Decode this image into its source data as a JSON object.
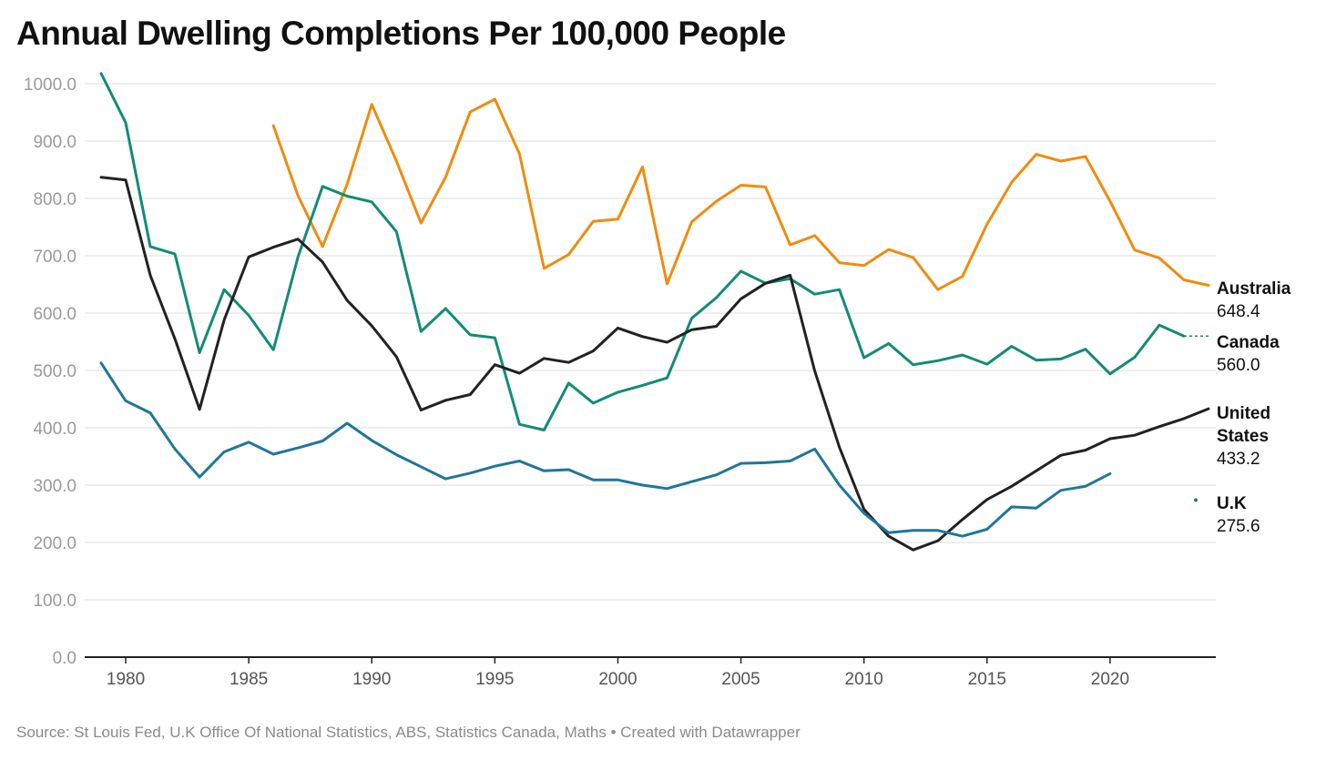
{
  "chart_data": {
    "type": "line",
    "title": "Annual Dwelling Completions Per 100,000 People",
    "source": "Source: St Louis Fed, U.K Office Of National Statistics, ABS, Statistics Canada, Maths • Created with Datawrapper",
    "xlim": [
      1979,
      2024
    ],
    "ylim": [
      0,
      1000
    ],
    "yticks": [
      "0.0",
      "100.0",
      "200.0",
      "300.0",
      "400.0",
      "500.0",
      "600.0",
      "700.0",
      "800.0",
      "900.0",
      "1000.0"
    ],
    "xticks": [
      "1980",
      "1985",
      "1990",
      "1995",
      "2000",
      "2005",
      "2010",
      "2015",
      "2020"
    ],
    "grid": true,
    "legend": "direct labels at right end",
    "series": [
      {
        "name": "Australia",
        "color": "#ef8c0e",
        "end_label": [
          "Australia"
        ],
        "end_value": "648.4",
        "x": [
          1986,
          1987,
          1988,
          1989,
          1990,
          1991,
          1992,
          1993,
          1994,
          1995,
          1996,
          1997,
          1998,
          1999,
          2000,
          2001,
          2002,
          2003,
          2004,
          2005,
          2006,
          2007,
          2008,
          2009,
          2010,
          2011,
          2012,
          2013,
          2014,
          2015,
          2016,
          2017,
          2018,
          2019,
          2020,
          2021,
          2022,
          2023,
          2024
        ],
        "y": [
          927,
          805,
          716,
          825,
          964,
          865,
          757,
          837,
          951,
          973,
          878,
          678,
          702,
          760,
          764,
          855,
          651,
          759,
          795,
          823,
          820,
          719,
          735,
          688,
          683,
          711,
          697,
          641,
          664,
          755,
          828,
          877,
          865,
          873,
          795,
          710,
          696,
          658,
          648.4
        ]
      },
      {
        "name": "Canada",
        "color": "#138c74",
        "end_label": [
          "Canada"
        ],
        "end_value": "560.0",
        "x": [
          1979,
          1980,
          1981,
          1982,
          1983,
          1984,
          1985,
          1986,
          1987,
          1988,
          1989,
          1990,
          1991,
          1992,
          1993,
          1994,
          1995,
          1996,
          1997,
          1998,
          1999,
          2000,
          2001,
          2002,
          2003,
          2004,
          2005,
          2006,
          2007,
          2008,
          2009,
          2010,
          2011,
          2012,
          2013,
          2014,
          2015,
          2016,
          2017,
          2018,
          2019,
          2020,
          2021,
          2022,
          2023
        ],
        "y": [
          1018,
          932,
          716,
          703,
          531,
          641,
          596,
          536,
          698,
          821,
          804,
          794,
          742,
          568,
          608,
          562,
          557,
          406,
          396,
          478,
          443,
          462,
          474,
          487,
          591,
          627,
          673,
          652,
          660,
          633,
          641,
          522,
          547,
          510,
          517,
          527,
          511,
          542,
          518,
          520,
          537,
          494,
          523,
          579,
          560
        ],
        "dotted_end": 2024
      },
      {
        "name": "United States",
        "color": "#222222",
        "end_label": [
          "United",
          "States"
        ],
        "end_value": "433.2",
        "x": [
          1979,
          1980,
          1981,
          1982,
          1983,
          1984,
          1985,
          1986,
          1987,
          1988,
          1989,
          1990,
          1991,
          1992,
          1993,
          1994,
          1995,
          1996,
          1997,
          1998,
          1999,
          2000,
          2001,
          2002,
          2003,
          2004,
          2005,
          2006,
          2007,
          2008,
          2009,
          2010,
          2011,
          2012,
          2013,
          2014,
          2015,
          2016,
          2017,
          2018,
          2019,
          2020,
          2021,
          2022,
          2023,
          2024
        ],
        "y": [
          837,
          832,
          666,
          555,
          432,
          588,
          698,
          715,
          729,
          689,
          622,
          578,
          524,
          431,
          448,
          458,
          510,
          495,
          521,
          514,
          534,
          574,
          559,
          549,
          571,
          577,
          625,
          652,
          666,
          499,
          366,
          258,
          211,
          187,
          203,
          240,
          275,
          298,
          325,
          352,
          361,
          381,
          387,
          402,
          416,
          433.2
        ]
      },
      {
        "name": "U.K",
        "color": "#1f7799",
        "end_label": [
          "U.K"
        ],
        "end_value": "275.6",
        "x": [
          1979,
          1980,
          1981,
          1982,
          1983,
          1984,
          1985,
          1986,
          1987,
          1988,
          1989,
          1990,
          1991,
          1992,
          1993,
          1994,
          1995,
          1996,
          1997,
          1998,
          1999,
          2000,
          2001,
          2002,
          2003,
          2004,
          2005,
          2006,
          2007,
          2008,
          2009,
          2010,
          2011,
          2012,
          2013,
          2014,
          2015,
          2016,
          2017,
          2018,
          2019,
          2020
        ],
        "y": [
          513,
          447,
          426,
          363,
          314,
          358,
          375,
          354,
          365,
          377,
          408,
          378,
          353,
          332,
          311,
          321,
          333,
          342,
          325,
          327,
          309,
          309,
          300,
          294,
          306,
          318,
          338,
          339,
          342,
          363,
          300,
          251,
          217,
          221,
          221,
          211,
          223,
          262,
          260,
          291,
          298,
          320
        ],
        "end_dot": {
          "x": 2024,
          "y": 275.6
        }
      }
    ]
  }
}
